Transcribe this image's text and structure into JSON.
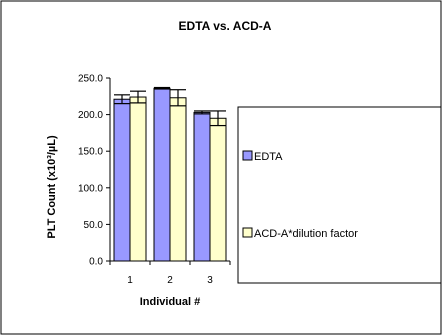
{
  "chart_data": {
    "type": "bar",
    "title": "EDTA vs. ACD-A",
    "xlabel": "Individual #",
    "ylabel": "PLT Count (x10³/µL)",
    "ylim": [
      0,
      250
    ],
    "yticks": [
      "0.0",
      "50.0",
      "100.0",
      "150.0",
      "200.0",
      "250.0"
    ],
    "categories": [
      "1",
      "2",
      "3"
    ],
    "series": [
      {
        "name": "EDTA",
        "values": [
          221,
          236,
          203
        ],
        "errors": [
          6,
          1,
          2
        ],
        "color": "#9999ff"
      },
      {
        "name": "ACD-A*dilution factor",
        "values": [
          224,
          223,
          195
        ],
        "errors": [
          8,
          11,
          10
        ],
        "color": "#ffffcc"
      }
    ],
    "legend_position": "right",
    "grid": false
  }
}
